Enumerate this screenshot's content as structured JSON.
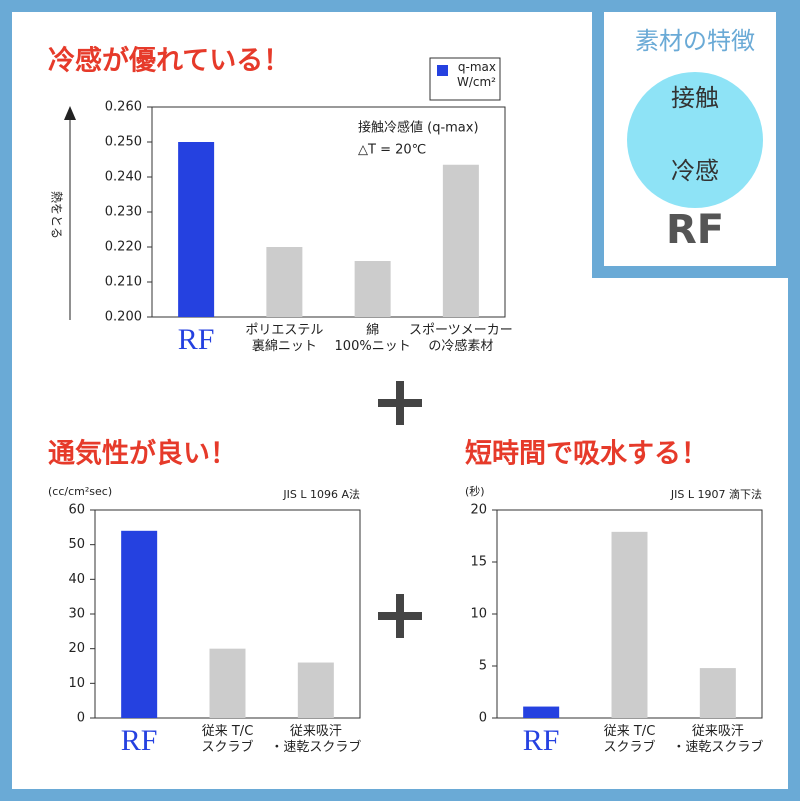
{
  "chart_data": [
    {
      "type": "bar",
      "title": "冷感が優れている！",
      "y_label": "熱をとる",
      "legend": {
        "label": "q-max\nW/cm²",
        "color": "#2541e0"
      },
      "annotations": [
        "接触冷感値 (q-max)",
        "△T = 20℃"
      ],
      "categories": [
        "RF",
        "ポリエステル\n裏綿ニット",
        "綿\n100%ニット",
        "スポーツメーカー\nの冷感素材"
      ],
      "values": [
        0.25,
        0.22,
        0.216,
        0.2435
      ],
      "colors": [
        "#2541e0",
        "#cccccc",
        "#cccccc",
        "#cccccc"
      ],
      "ylim": [
        0.2,
        0.26
      ],
      "yticks": [
        {
          "value": 0.2,
          "label": "0.200"
        },
        {
          "value": 0.21,
          "label": "0.210"
        },
        {
          "value": 0.22,
          "label": "0.220"
        },
        {
          "value": 0.23,
          "label": "0.230"
        },
        {
          "value": 0.24,
          "label": "0.240"
        },
        {
          "value": 0.25,
          "label": "0.250"
        },
        {
          "value": 0.26,
          "label": "0.260"
        }
      ]
    },
    {
      "type": "bar",
      "title": "通気性が良い！",
      "unit": "(cc/cm²sec)",
      "note": "JIS L 1096  A法",
      "categories": [
        "RF",
        "従来 T/C\nスクラブ",
        "従来吸汗\n・速乾スクラブ"
      ],
      "values": [
        54,
        20,
        16
      ],
      "colors": [
        "#2541e0",
        "#cccccc",
        "#cccccc"
      ],
      "ylim": [
        0,
        60
      ],
      "yticks": [
        0,
        10,
        20,
        30,
        40,
        50,
        60
      ]
    },
    {
      "type": "bar",
      "title": "短時間で吸水する！",
      "unit": "(秒)",
      "note": "JIS L 1907  滴下法",
      "categories": [
        "RF",
        "従来 T/C\nスクラブ",
        "従来吸汗\n・速乾スクラブ"
      ],
      "values": [
        1.1,
        17.9,
        4.8
      ],
      "colors": [
        "#2541e0",
        "#cccccc",
        "#cccccc"
      ],
      "ylim": [
        0,
        20
      ],
      "yticks": [
        0,
        5,
        10,
        15,
        20
      ]
    }
  ],
  "badge": {
    "heading": "素材の特徴",
    "circle_top": "接触",
    "circle_bottom": "冷感",
    "label": "RF"
  }
}
